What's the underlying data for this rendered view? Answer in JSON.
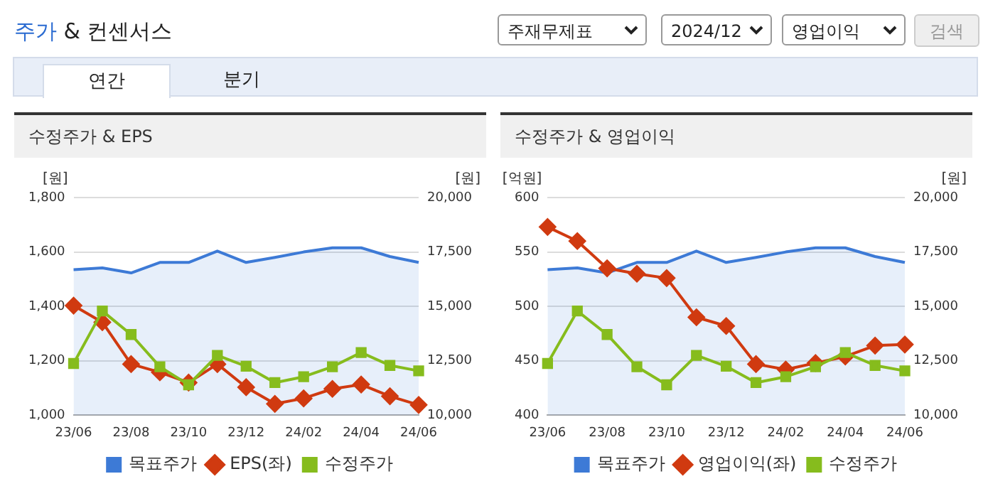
{
  "chart_data": [
    {
      "type": "other",
      "title": "주가 & 컨센서스",
      "annotations": [
        "주재무제표",
        "2024/12",
        "영업이익",
        "검색",
        "연간",
        "분기"
      ]
    },
    {
      "type": "line",
      "title": "수정주가 & EPS",
      "ylabel": "[원]",
      "y2label": "[원]",
      "categories": [
        "23/06",
        null,
        "23/08",
        null,
        "23/10",
        null,
        "23/12",
        null,
        "24/02",
        null,
        "24/04",
        null,
        "24/06"
      ],
      "series": [
        {
          "name": "목표주가",
          "type": "area",
          "axis": "y2",
          "color": "#3d7ad6",
          "marker": "none",
          "values": [
            16690,
            16770,
            16540,
            17020,
            17020,
            17540,
            17020,
            17250,
            17500,
            17690,
            17690,
            17290,
            17020
          ]
        },
        {
          "name": "EPS(좌)",
          "type": "line",
          "color": "#d03a10",
          "marker": "diamond",
          "values": [
            1403,
            1342,
            1188,
            1158,
            1120,
            1188,
            1103,
            1042,
            1062,
            1097,
            1113,
            1070,
            1038
          ]
        },
        {
          "name": "수정주가",
          "type": "line",
          "axis": "y2",
          "color": "#86bc1d",
          "marker": "square",
          "values": [
            12380,
            14790,
            13710,
            12230,
            11400,
            12750,
            12250,
            11500,
            11770,
            12230,
            12880,
            12290,
            12040
          ]
        }
      ],
      "ylim": [
        1000,
        1800
      ],
      "yticks": [
        {
          "value": 1000,
          "label": "1,000"
        },
        {
          "value": 1200,
          "label": "1,200"
        },
        {
          "value": 1400,
          "label": "1,400"
        },
        {
          "value": 1600,
          "label": "1,600"
        },
        {
          "value": 1800,
          "label": "1,800"
        }
      ],
      "y2lim": [
        10000,
        20000
      ],
      "y2ticks": [
        {
          "value": 10000,
          "label": "10,000"
        },
        {
          "value": 12500,
          "label": "12,500"
        },
        {
          "value": 15000,
          "label": "15,000"
        },
        {
          "value": 17500,
          "label": "17,500"
        },
        {
          "value": 20000,
          "label": "20,000"
        }
      ],
      "grid": "y",
      "legend": "bottom"
    },
    {
      "type": "line",
      "title": "수정주가 & 영업이익",
      "ylabel": "[억원]",
      "y2label": "[원]",
      "categories": [
        "23/06",
        null,
        "23/08",
        null,
        "23/10",
        null,
        "23/12",
        null,
        "24/02",
        null,
        "24/04",
        null,
        "24/06"
      ],
      "series": [
        {
          "name": "목표주가",
          "type": "area",
          "axis": "y2",
          "color": "#3d7ad6",
          "marker": "none",
          "values": [
            16690,
            16770,
            16540,
            17020,
            17020,
            17540,
            17020,
            17250,
            17500,
            17690,
            17690,
            17290,
            17020
          ]
        },
        {
          "name": "영업이익(좌)",
          "type": "line",
          "color": "#d03a10",
          "marker": "diamond",
          "values": [
            573,
            560,
            535,
            530,
            526,
            490,
            482,
            447,
            442,
            448,
            454,
            464,
            465
          ]
        },
        {
          "name": "수정주가",
          "type": "line",
          "axis": "y2",
          "color": "#86bc1d",
          "marker": "square",
          "values": [
            12380,
            14790,
            13710,
            12230,
            11400,
            12750,
            12250,
            11500,
            11770,
            12230,
            12880,
            12290,
            12040
          ]
        }
      ],
      "ylim": [
        400,
        600
      ],
      "yticks": [
        400,
        450,
        500,
        550,
        600
      ],
      "y2lim": [
        10000,
        20000
      ],
      "y2ticks": [
        {
          "value": 10000,
          "label": "10,000"
        },
        {
          "value": 12500,
          "label": "12,500"
        },
        {
          "value": 15000,
          "label": "15,000"
        },
        {
          "value": 17500,
          "label": "17,500"
        },
        {
          "value": 20000,
          "label": "20,000"
        }
      ],
      "grid": "y",
      "legend": "bottom"
    }
  ]
}
